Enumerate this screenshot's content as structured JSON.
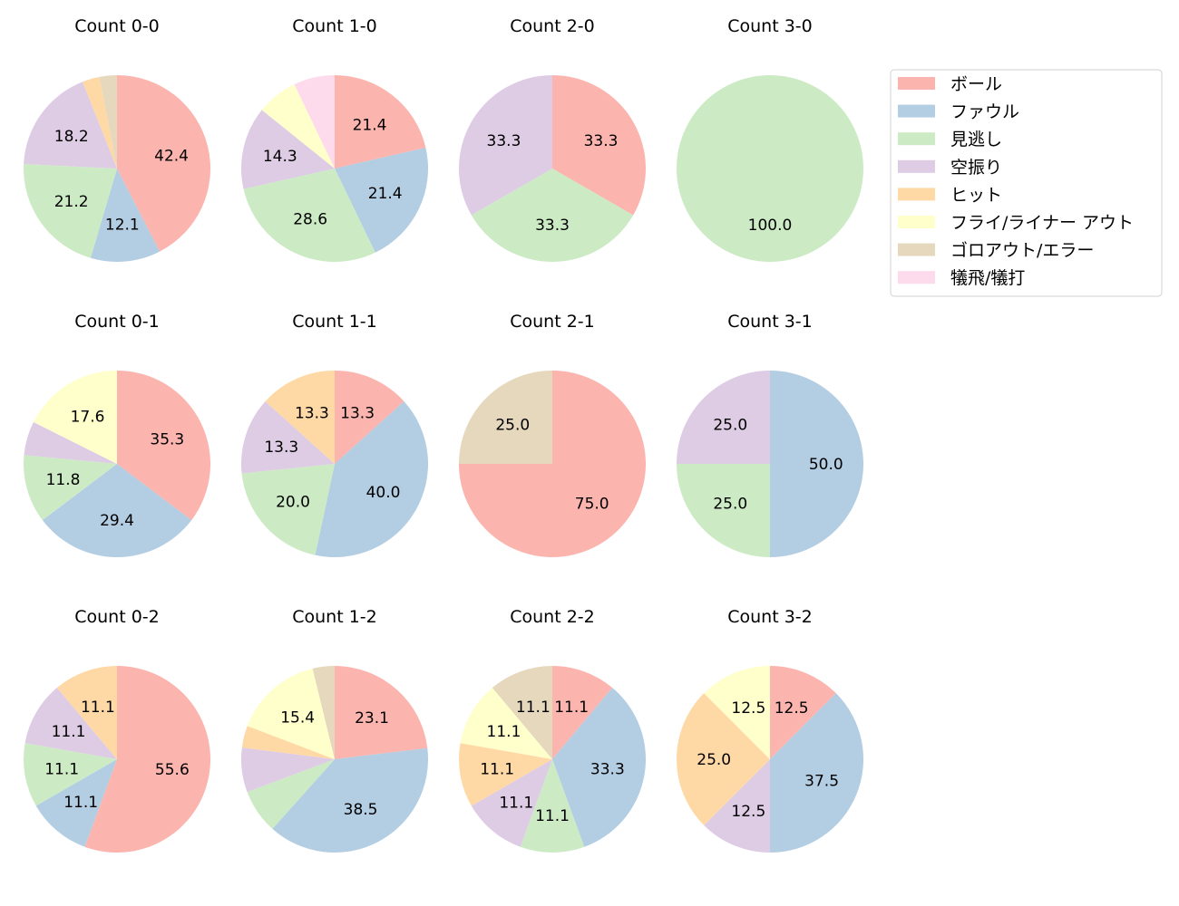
{
  "chart_data": {
    "type": "pie",
    "legend": {
      "placement": "top-right",
      "entries": [
        "ボール",
        "ファウル",
        "見逃し",
        "空振り",
        "ヒット",
        "フライ/ライナー アウト",
        "ゴロアウト/エラー",
        "犠飛/犠打"
      ]
    },
    "colors": [
      "#fbb4ae",
      "#b3cde3",
      "#ccebc5",
      "#decbe4",
      "#fed9a6",
      "#ffffcc",
      "#e5d8bd",
      "#fddaec"
    ],
    "start_angle": 90,
    "direction": "clockwise",
    "charts": [
      {
        "title": "Count 0-0",
        "values": [
          42.4,
          12.1,
          21.2,
          18.2,
          3.0,
          0,
          3.0,
          0
        ]
      },
      {
        "title": "Count 1-0",
        "values": [
          21.4,
          21.4,
          28.6,
          14.3,
          0,
          7.1,
          0,
          7.1
        ]
      },
      {
        "title": "Count 2-0",
        "values": [
          33.3,
          0,
          33.3,
          33.3,
          0,
          0,
          0,
          0
        ]
      },
      {
        "title": "Count 3-0",
        "values": [
          0,
          0,
          100.0,
          0,
          0,
          0,
          0,
          0
        ]
      },
      {
        "title": "Count 0-1",
        "values": [
          35.3,
          29.4,
          11.8,
          5.9,
          0,
          17.6,
          0,
          0
        ]
      },
      {
        "title": "Count 1-1",
        "values": [
          13.3,
          40.0,
          20.0,
          13.3,
          13.3,
          0,
          0,
          0
        ]
      },
      {
        "title": "Count 2-1",
        "values": [
          75.0,
          0,
          0,
          0,
          0,
          0,
          25.0,
          0
        ]
      },
      {
        "title": "Count 3-1",
        "values": [
          0,
          50.0,
          25.0,
          25.0,
          0,
          0,
          0,
          0
        ]
      },
      {
        "title": "Count 0-2",
        "values": [
          55.6,
          11.1,
          11.1,
          11.1,
          11.1,
          0,
          0,
          0
        ]
      },
      {
        "title": "Count 1-2",
        "values": [
          23.1,
          38.5,
          7.7,
          7.7,
          3.8,
          15.4,
          3.8,
          0
        ]
      },
      {
        "title": "Count 2-2",
        "values": [
          11.1,
          33.3,
          11.1,
          11.1,
          11.1,
          11.1,
          11.1,
          0
        ]
      },
      {
        "title": "Count 3-2",
        "values": [
          12.5,
          37.5,
          0,
          12.5,
          25.0,
          12.5,
          0,
          0
        ]
      }
    ]
  }
}
